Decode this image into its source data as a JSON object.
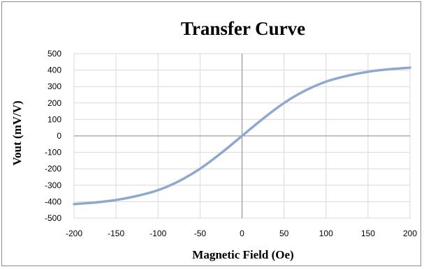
{
  "chart_data": {
    "type": "line",
    "title": "Transfer Curve",
    "xlabel": "Magnetic Field (Oe)",
    "ylabel": "Vout (mV/V)",
    "xlim": [
      -200,
      200
    ],
    "ylim": [
      -500,
      500
    ],
    "x_ticks": [
      -200,
      -150,
      -100,
      -50,
      0,
      50,
      100,
      150,
      200
    ],
    "y_ticks": [
      500,
      400,
      300,
      200,
      100,
      0,
      -100,
      -200,
      -300,
      -400,
      -500
    ],
    "x_tick_labels": [
      "-200",
      "-150",
      "-100",
      "-50",
      "0",
      "50",
      "100",
      "150",
      "200"
    ],
    "y_tick_labels": [
      "500",
      "400",
      "300",
      "200",
      "100",
      "0",
      "-100",
      "-200",
      "-300",
      "-400",
      "-500"
    ],
    "grid": true,
    "legend": "none",
    "series": [
      {
        "color": "#8fa8cf",
        "x": [
          -200,
          -175,
          -150,
          -125,
          -100,
          -75,
          -50,
          -25,
          0,
          25,
          50,
          75,
          100,
          125,
          150,
          175,
          200
        ],
        "y": [
          -415,
          -405,
          -390,
          -365,
          -330,
          -275,
          -200,
          -105,
          0,
          105,
          200,
          275,
          330,
          365,
          390,
          405,
          415
        ]
      }
    ]
  }
}
